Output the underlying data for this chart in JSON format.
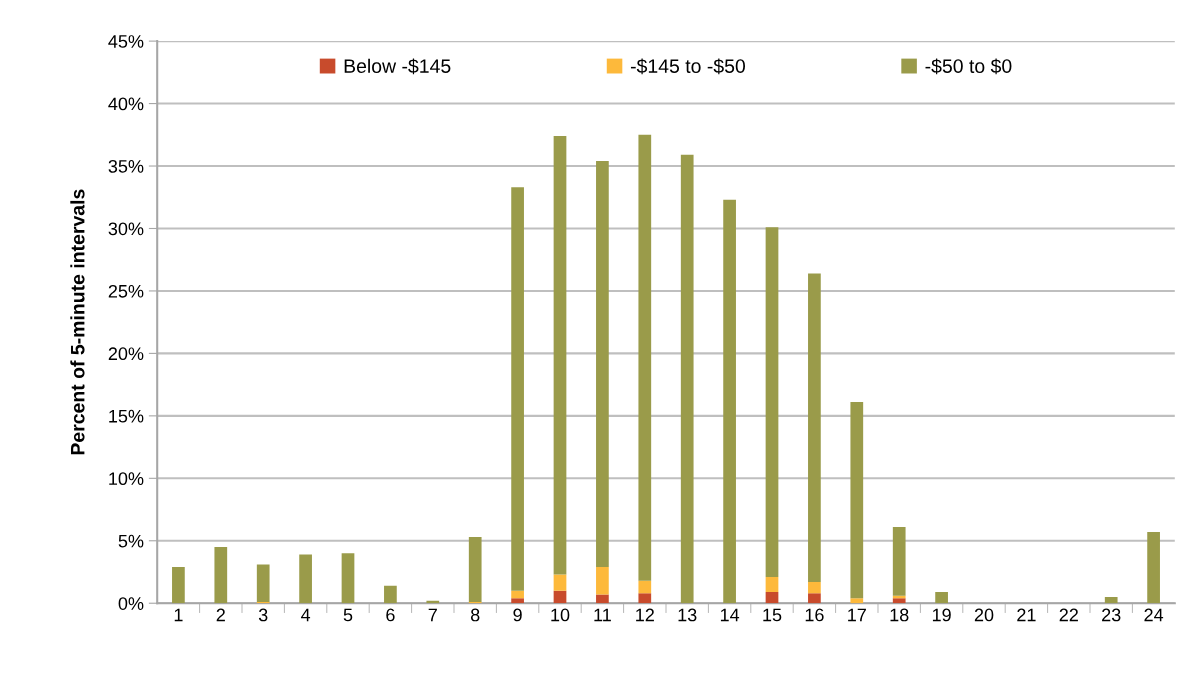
{
  "chart_data": {
    "type": "bar",
    "stacked": true,
    "ylabel": "Percent of 5-minute intervals",
    "categories": [
      "1",
      "2",
      "3",
      "4",
      "5",
      "6",
      "7",
      "8",
      "9",
      "10",
      "11",
      "12",
      "13",
      "14",
      "15",
      "16",
      "17",
      "18",
      "19",
      "20",
      "21",
      "22",
      "23",
      "24"
    ],
    "series": [
      {
        "name": "Below -$145",
        "color": "#c84b2c",
        "values": [
          0,
          0,
          0,
          0,
          0,
          0,
          0,
          0,
          0.4,
          1.0,
          0.7,
          0.8,
          0,
          0,
          0.9,
          0.8,
          0,
          0.4,
          0,
          0,
          0,
          0,
          0,
          0
        ]
      },
      {
        "name": "-$145 to -$50",
        "color": "#fdb93b",
        "values": [
          0,
          0,
          0.1,
          0,
          0,
          0,
          0,
          0.1,
          0.6,
          1.3,
          2.2,
          1.0,
          0,
          0,
          1.2,
          0.9,
          0.4,
          0.2,
          0,
          0,
          0,
          0,
          0,
          0
        ]
      },
      {
        "name": "-$50 to $0",
        "color": "#9a9b4a",
        "values": [
          2.9,
          4.5,
          3.0,
          3.9,
          4.0,
          1.4,
          0.2,
          5.2,
          32.3,
          35.1,
          32.5,
          35.7,
          35.9,
          32.3,
          28.0,
          24.7,
          15.7,
          5.5,
          0.9,
          0,
          0,
          0,
          0.5,
          5.7
        ]
      }
    ],
    "ylim": [
      0,
      45
    ],
    "yticks": [
      {
        "value": 0,
        "label": "0%"
      },
      {
        "value": 5,
        "label": "5%"
      },
      {
        "value": 10,
        "label": "10%"
      },
      {
        "value": 15,
        "label": "15%"
      },
      {
        "value": 20,
        "label": "20%"
      },
      {
        "value": 25,
        "label": "25%"
      },
      {
        "value": 30,
        "label": "30%"
      },
      {
        "value": 35,
        "label": "35%"
      },
      {
        "value": 40,
        "label": "40%"
      },
      {
        "value": 45,
        "label": "45%"
      }
    ],
    "grid": "y",
    "legend": "top"
  }
}
